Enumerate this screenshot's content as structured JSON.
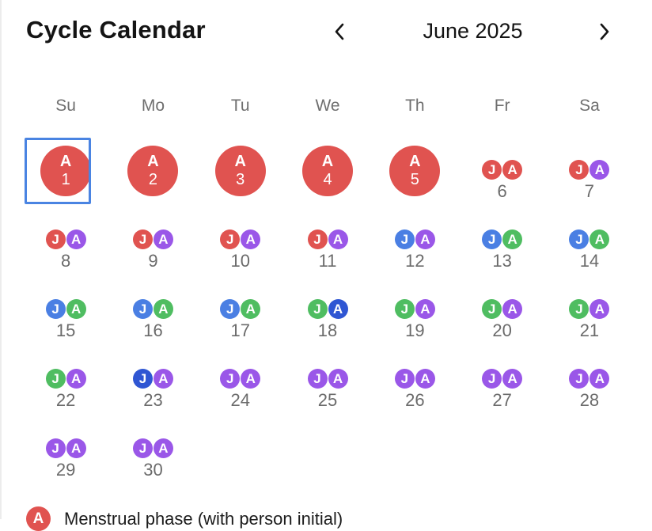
{
  "header": {
    "title": "Cycle Calendar",
    "month": "June 2025",
    "prev_icon": "chevron-left-icon",
    "next_icon": "chevron-right-icon"
  },
  "weekdays": [
    "Su",
    "Mo",
    "Tu",
    "We",
    "Th",
    "Fr",
    "Sa"
  ],
  "colors": {
    "menstrual": "#e05350",
    "follicular": "#4a7fe3",
    "ovulation": "#4fbd61",
    "luteal": "#9a57e8",
    "ovulation_peak": "#2f56d3",
    "selected_border": "#4a84e2"
  },
  "calendar": {
    "leading_blanks": 0,
    "selected_day": 1,
    "days": [
      {
        "day": "1",
        "big": "A",
        "persons": []
      },
      {
        "day": "2",
        "big": "A",
        "persons": []
      },
      {
        "day": "3",
        "big": "A",
        "persons": []
      },
      {
        "day": "4",
        "big": "A",
        "persons": []
      },
      {
        "day": "5",
        "big": "A",
        "persons": []
      },
      {
        "day": "6",
        "persons": [
          {
            "i": "J",
            "phase": "menstrual"
          },
          {
            "i": "A",
            "phase": "menstrual"
          }
        ]
      },
      {
        "day": "7",
        "persons": [
          {
            "i": "J",
            "phase": "menstrual"
          },
          {
            "i": "A",
            "phase": "luteal"
          }
        ]
      },
      {
        "day": "8",
        "persons": [
          {
            "i": "J",
            "phase": "menstrual"
          },
          {
            "i": "A",
            "phase": "luteal"
          }
        ]
      },
      {
        "day": "9",
        "persons": [
          {
            "i": "J",
            "phase": "menstrual"
          },
          {
            "i": "A",
            "phase": "luteal"
          }
        ]
      },
      {
        "day": "10",
        "persons": [
          {
            "i": "J",
            "phase": "menstrual"
          },
          {
            "i": "A",
            "phase": "luteal"
          }
        ]
      },
      {
        "day": "11",
        "persons": [
          {
            "i": "J",
            "phase": "menstrual"
          },
          {
            "i": "A",
            "phase": "luteal"
          }
        ]
      },
      {
        "day": "12",
        "persons": [
          {
            "i": "J",
            "phase": "follicular"
          },
          {
            "i": "A",
            "phase": "luteal"
          }
        ]
      },
      {
        "day": "13",
        "persons": [
          {
            "i": "J",
            "phase": "follicular"
          },
          {
            "i": "A",
            "phase": "ovulation"
          }
        ]
      },
      {
        "day": "14",
        "persons": [
          {
            "i": "J",
            "phase": "follicular"
          },
          {
            "i": "A",
            "phase": "ovulation"
          }
        ]
      },
      {
        "day": "15",
        "persons": [
          {
            "i": "J",
            "phase": "follicular"
          },
          {
            "i": "A",
            "phase": "ovulation"
          }
        ]
      },
      {
        "day": "16",
        "persons": [
          {
            "i": "J",
            "phase": "follicular"
          },
          {
            "i": "A",
            "phase": "ovulation"
          }
        ]
      },
      {
        "day": "17",
        "persons": [
          {
            "i": "J",
            "phase": "follicular"
          },
          {
            "i": "A",
            "phase": "ovulation"
          }
        ]
      },
      {
        "day": "18",
        "persons": [
          {
            "i": "J",
            "phase": "ovulation"
          },
          {
            "i": "A",
            "phase": "ovulation_peak"
          }
        ]
      },
      {
        "day": "19",
        "persons": [
          {
            "i": "J",
            "phase": "ovulation"
          },
          {
            "i": "A",
            "phase": "luteal"
          }
        ]
      },
      {
        "day": "20",
        "persons": [
          {
            "i": "J",
            "phase": "ovulation"
          },
          {
            "i": "A",
            "phase": "luteal"
          }
        ]
      },
      {
        "day": "21",
        "persons": [
          {
            "i": "J",
            "phase": "ovulation"
          },
          {
            "i": "A",
            "phase": "luteal"
          }
        ]
      },
      {
        "day": "22",
        "persons": [
          {
            "i": "J",
            "phase": "ovulation"
          },
          {
            "i": "A",
            "phase": "luteal"
          }
        ]
      },
      {
        "day": "23",
        "persons": [
          {
            "i": "J",
            "phase": "ovulation_peak"
          },
          {
            "i": "A",
            "phase": "luteal"
          }
        ]
      },
      {
        "day": "24",
        "persons": [
          {
            "i": "J",
            "phase": "luteal"
          },
          {
            "i": "A",
            "phase": "luteal"
          }
        ]
      },
      {
        "day": "25",
        "persons": [
          {
            "i": "J",
            "phase": "luteal"
          },
          {
            "i": "A",
            "phase": "luteal"
          }
        ]
      },
      {
        "day": "26",
        "persons": [
          {
            "i": "J",
            "phase": "luteal"
          },
          {
            "i": "A",
            "phase": "luteal"
          }
        ]
      },
      {
        "day": "27",
        "persons": [
          {
            "i": "J",
            "phase": "luteal"
          },
          {
            "i": "A",
            "phase": "luteal"
          }
        ]
      },
      {
        "day": "28",
        "persons": [
          {
            "i": "J",
            "phase": "luteal"
          },
          {
            "i": "A",
            "phase": "luteal"
          }
        ]
      },
      {
        "day": "29",
        "persons": [
          {
            "i": "J",
            "phase": "luteal"
          },
          {
            "i": "A",
            "phase": "luteal"
          }
        ]
      },
      {
        "day": "30",
        "persons": [
          {
            "i": "J",
            "phase": "luteal"
          },
          {
            "i": "A",
            "phase": "luteal"
          }
        ]
      }
    ]
  },
  "legend": [
    {
      "initial": "A",
      "phase": "menstrual",
      "label": "Menstrual phase (with person initial)"
    }
  ]
}
